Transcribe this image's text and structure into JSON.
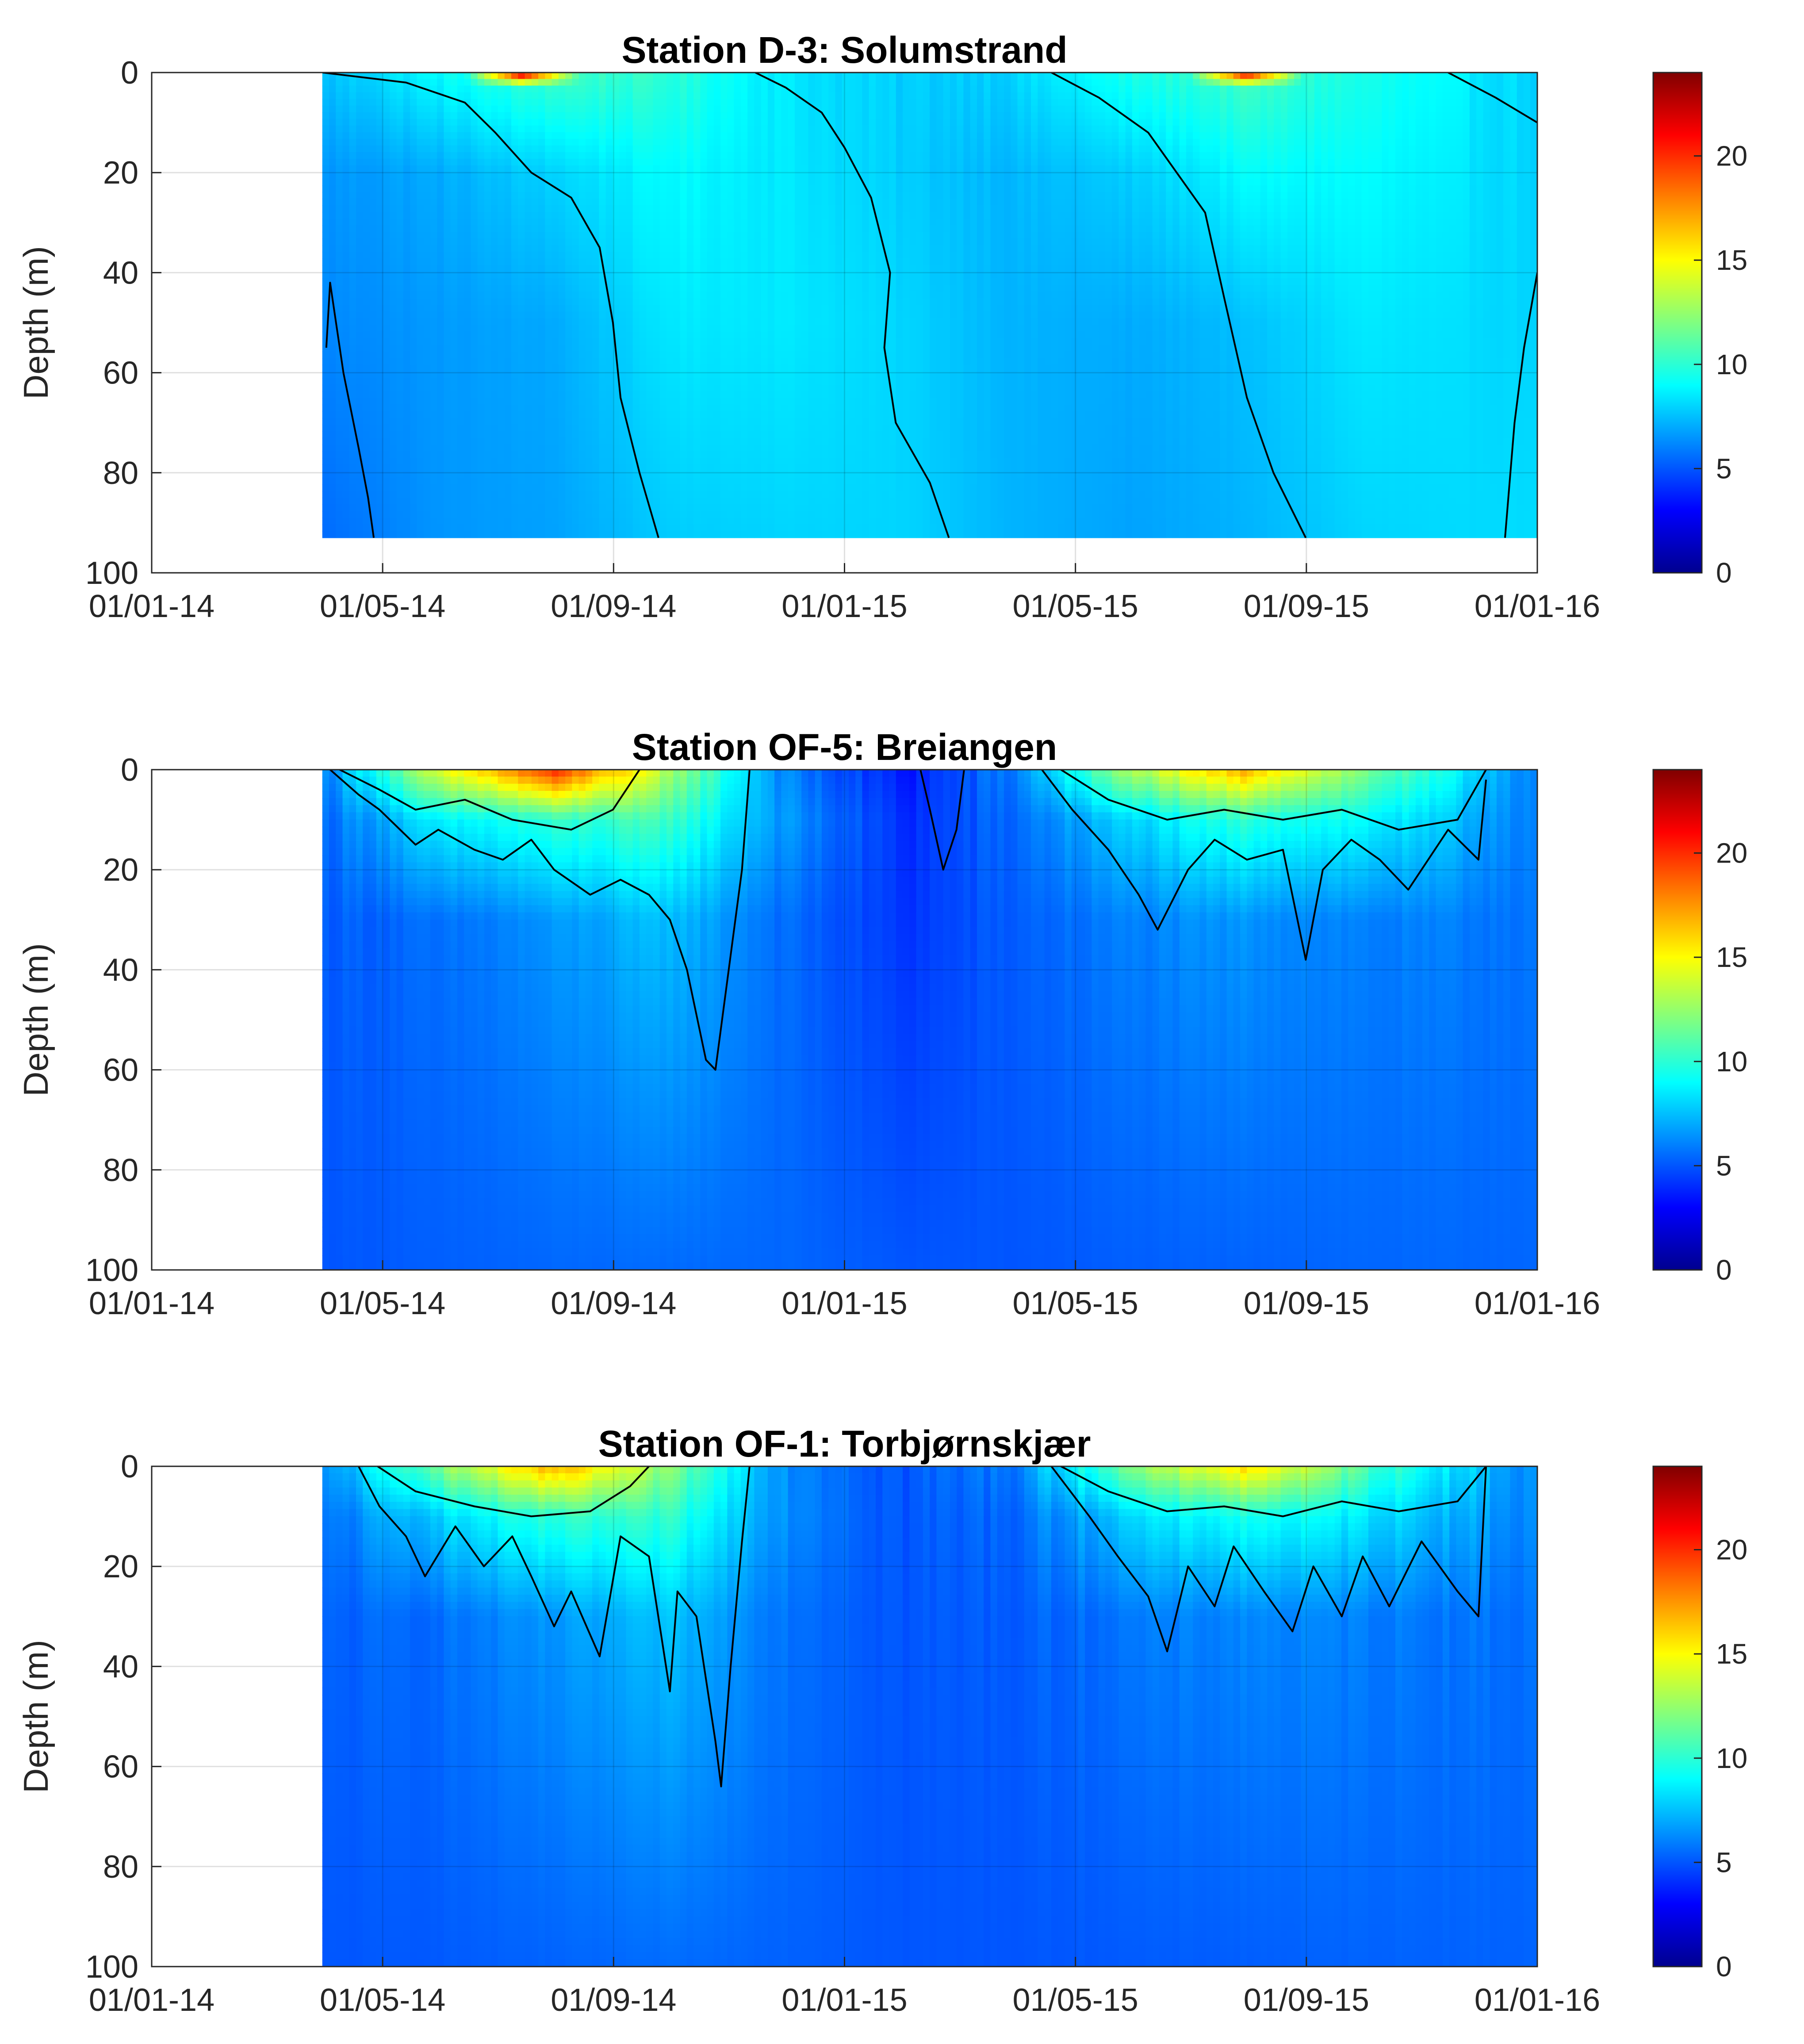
{
  "figure": {
    "colorbar_colors": [
      "#00008f",
      "#0000ff",
      "#0080ff",
      "#00ffff",
      "#80ff80",
      "#ffff00",
      "#ff8000",
      "#ff0000",
      "#800000"
    ],
    "plot_background": "#ffffff",
    "contour_color": "#000000"
  },
  "chart_data": [
    {
      "type": "heatmap",
      "title": "Station D-3: Solumstrand",
      "ylabel": "Depth (m)",
      "xlabel": "",
      "x_tick_labels": [
        "01/01-14",
        "01/05-14",
        "01/09-14",
        "01/01-15",
        "01/05-15",
        "01/09-15",
        "01/01-16"
      ],
      "x_range": [
        "2014-01-01",
        "2016-01-01"
      ],
      "y_tick_labels": [
        "0",
        "20",
        "40",
        "60",
        "80",
        "100"
      ],
      "ylim": [
        0,
        100
      ],
      "y_reversed": true,
      "data_start": "2014-04-01",
      "data_end": "2016-01-01",
      "data_max_depth": 93,
      "colorbar": {
        "range": [
          0,
          24
        ],
        "tick_labels": [
          "0",
          "5",
          "10",
          "15",
          "20"
        ]
      },
      "grid": true,
      "base_field_by_depth": [
        {
          "depth": 0,
          "values": [
            7.5,
            9.0,
            10.5,
            10.0,
            8.5,
            7.8,
            8.0,
            9.5,
            10.5,
            9.5,
            8.0
          ]
        },
        {
          "depth": 20,
          "values": [
            6.5,
            7.0,
            8.0,
            9.0,
            8.5,
            7.8,
            7.3,
            7.8,
            9.0,
            9.0,
            8.0
          ]
        },
        {
          "depth": 50,
          "values": [
            6.2,
            6.6,
            7.0,
            8.5,
            8.5,
            8.0,
            7.2,
            7.0,
            7.5,
            8.5,
            8.0
          ]
        },
        {
          "depth": 93,
          "values": [
            5.5,
            6.5,
            6.8,
            7.8,
            8.0,
            8.0,
            7.2,
            6.8,
            7.2,
            8.0,
            8.2
          ]
        }
      ],
      "base_field_dates": [
        "2014-04-01",
        "2014-06-01",
        "2014-08-01",
        "2014-10-01",
        "2014-12-01",
        "2015-02-01",
        "2015-04-01",
        "2015-06-01",
        "2015-08-01",
        "2015-10-01",
        "2016-01-01"
      ],
      "surface_warm_periods": [
        {
          "start": "2014-06-15",
          "end": "2014-08-15",
          "peak_value": 23
        },
        {
          "start": "2015-07-01",
          "end": "2015-09-01",
          "peak_value": 22
        }
      ],
      "contour_lines": [
        {
          "points": [
            [
              "2014-04-03",
              55
            ],
            [
              "2014-04-05",
              42
            ],
            [
              "2014-04-12",
              60
            ],
            [
              "2014-04-20",
              75
            ],
            [
              "2014-04-25",
              85
            ],
            [
              "2014-04-28",
              93
            ]
          ]
        },
        {
          "points": [
            [
              "2014-04-01",
              0
            ],
            [
              "2014-05-15",
              2
            ],
            [
              "2014-06-15",
              6
            ],
            [
              "2014-07-01",
              12
            ],
            [
              "2014-07-20",
              20
            ],
            [
              "2014-08-10",
              25
            ],
            [
              "2014-08-25",
              35
            ],
            [
              "2014-09-01",
              50
            ],
            [
              "2014-09-05",
              65
            ],
            [
              "2014-09-15",
              80
            ],
            [
              "2014-09-25",
              93
            ]
          ]
        },
        {
          "points": [
            [
              "2014-11-15",
              0
            ],
            [
              "2014-12-01",
              3
            ],
            [
              "2014-12-20",
              8
            ],
            [
              "2015-01-01",
              15
            ],
            [
              "2015-01-15",
              25
            ],
            [
              "2015-01-25",
              40
            ],
            [
              "2015-01-22",
              55
            ],
            [
              "2015-01-28",
              70
            ],
            [
              "2015-02-15",
              82
            ],
            [
              "2015-02-25",
              93
            ]
          ]
        },
        {
          "points": [
            [
              "2015-04-20",
              0
            ],
            [
              "2015-05-15",
              5
            ],
            [
              "2015-06-10",
              12
            ],
            [
              "2015-06-25",
              20
            ],
            [
              "2015-07-10",
              28
            ],
            [
              "2015-07-20",
              45
            ],
            [
              "2015-08-01",
              65
            ],
            [
              "2015-08-15",
              80
            ],
            [
              "2015-09-01",
              93
            ]
          ]
        },
        {
          "points": [
            [
              "2015-11-15",
              0
            ],
            [
              "2015-12-10",
              5
            ],
            [
              "2016-01-01",
              10
            ]
          ]
        },
        {
          "points": [
            [
              "2016-01-01",
              40
            ],
            [
              "2015-12-25",
              55
            ],
            [
              "2015-12-20",
              70
            ],
            [
              "2015-12-15",
              93
            ]
          ]
        }
      ]
    },
    {
      "type": "heatmap",
      "title": "Station OF-5: Breiangen",
      "ylabel": "Depth (m)",
      "xlabel": "",
      "x_tick_labels": [
        "01/01-14",
        "01/05-14",
        "01/09-14",
        "01/01-15",
        "01/05-15",
        "01/09-15",
        "01/01-16"
      ],
      "x_range": [
        "2014-01-01",
        "2016-01-01"
      ],
      "y_tick_labels": [
        "0",
        "20",
        "40",
        "60",
        "80",
        "100"
      ],
      "ylim": [
        0,
        100
      ],
      "y_reversed": true,
      "data_start": "2014-04-01",
      "data_end": "2016-01-01",
      "data_max_depth": 100,
      "colorbar": {
        "range": [
          0,
          24
        ],
        "tick_labels": [
          "0",
          "5",
          "10",
          "15",
          "20"
        ]
      },
      "grid": true,
      "base_field_by_depth": [
        {
          "depth": 0,
          "values": [
            6.0,
            14.0,
            20.0,
            13.0,
            6.0,
            3.5,
            6.0,
            13.0,
            17.0,
            12.0,
            6.0
          ]
        },
        {
          "depth": 10,
          "values": [
            5.5,
            8.5,
            10.0,
            10.5,
            6.5,
            4.0,
            5.5,
            8.0,
            10.0,
            9.0,
            6.0
          ]
        },
        {
          "depth": 30,
          "values": [
            5.2,
            5.5,
            6.5,
            7.5,
            5.5,
            4.2,
            5.2,
            6.0,
            6.5,
            6.0,
            5.8
          ]
        },
        {
          "depth": 100,
          "values": [
            5.0,
            5.2,
            5.4,
            5.5,
            5.4,
            5.0,
            5.0,
            5.2,
            5.3,
            5.4,
            5.4
          ]
        }
      ],
      "base_field_dates": [
        "2014-04-01",
        "2014-06-01",
        "2014-08-01",
        "2014-10-01",
        "2014-12-01",
        "2015-02-01",
        "2015-04-01",
        "2015-06-01",
        "2015-08-01",
        "2015-10-01",
        "2016-01-01"
      ],
      "contour_lines": [
        {
          "points": [
            [
              "2014-04-05",
              0
            ],
            [
              "2014-04-20",
              5
            ],
            [
              "2014-05-01",
              8
            ],
            [
              "2014-05-20",
              15
            ],
            [
              "2014-06-01",
              12
            ],
            [
              "2014-06-20",
              16
            ],
            [
              "2014-07-05",
              18
            ],
            [
              "2014-07-20",
              14
            ],
            [
              "2014-08-01",
              20
            ],
            [
              "2014-08-20",
              25
            ],
            [
              "2014-09-05",
              22
            ],
            [
              "2014-09-20",
              25
            ],
            [
              "2014-10-01",
              30
            ],
            [
              "2014-10-10",
              40
            ],
            [
              "2014-10-20",
              58
            ],
            [
              "2014-10-25",
              60
            ],
            [
              "2014-11-01",
              40
            ],
            [
              "2014-11-08",
              20
            ],
            [
              "2014-11-12",
              0
            ]
          ]
        },
        {
          "points": [
            [
              "2014-04-10",
              0
            ],
            [
              "2014-05-01",
              4
            ],
            [
              "2014-05-20",
              8
            ],
            [
              "2014-06-15",
              6
            ],
            [
              "2014-07-10",
              10
            ],
            [
              "2014-08-10",
              12
            ],
            [
              "2014-09-01",
              8
            ],
            [
              "2014-09-15",
              0
            ]
          ]
        },
        {
          "points": [
            [
              "2015-04-15",
              0
            ],
            [
              "2015-05-01",
              8
            ],
            [
              "2015-05-20",
              16
            ],
            [
              "2015-06-05",
              25
            ],
            [
              "2015-06-15",
              32
            ],
            [
              "2015-07-01",
              20
            ],
            [
              "2015-07-15",
              14
            ],
            [
              "2015-08-01",
              18
            ],
            [
              "2015-08-20",
              16
            ],
            [
              "2015-09-01",
              38
            ],
            [
              "2015-09-10",
              20
            ],
            [
              "2015-09-25",
              14
            ],
            [
              "2015-10-10",
              18
            ],
            [
              "2015-10-25",
              24
            ],
            [
              "2015-11-15",
              12
            ],
            [
              "2015-12-01",
              18
            ],
            [
              "2015-12-05",
              2
            ]
          ]
        },
        {
          "points": [
            [
              "2015-04-25",
              0
            ],
            [
              "2015-05-20",
              6
            ],
            [
              "2015-06-20",
              10
            ],
            [
              "2015-07-20",
              8
            ],
            [
              "2015-08-20",
              10
            ],
            [
              "2015-09-20",
              8
            ],
            [
              "2015-10-20",
              12
            ],
            [
              "2015-11-20",
              10
            ],
            [
              "2015-12-05",
              0
            ]
          ]
        },
        {
          "points": [
            [
              "2015-02-10",
              0
            ],
            [
              "2015-02-15",
              8
            ],
            [
              "2015-02-22",
              20
            ],
            [
              "2015-03-01",
              12
            ],
            [
              "2015-03-05",
              0
            ]
          ]
        }
      ]
    },
    {
      "type": "heatmap",
      "title": "Station OF-1: Torbjørnskjær",
      "ylabel": "Depth (m)",
      "xlabel": "",
      "x_tick_labels": [
        "01/01-14",
        "01/05-14",
        "01/09-14",
        "01/01-15",
        "01/05-15",
        "01/09-15",
        "01/01-16"
      ],
      "x_range": [
        "2014-01-01",
        "2016-01-01"
      ],
      "y_tick_labels": [
        "0",
        "20",
        "40",
        "60",
        "80",
        "100"
      ],
      "ylim": [
        0,
        100
      ],
      "y_reversed": true,
      "data_start": "2014-04-01",
      "data_end": "2016-01-01",
      "data_max_depth": 100,
      "colorbar": {
        "range": [
          0,
          24
        ],
        "tick_labels": [
          "0",
          "5",
          "10",
          "15",
          "20"
        ]
      },
      "grid": true,
      "base_field_by_depth": [
        {
          "depth": 0,
          "values": [
            6.0,
            12.0,
            17.0,
            12.0,
            6.5,
            5.0,
            6.0,
            12.0,
            16.0,
            11.0,
            6.0
          ]
        },
        {
          "depth": 10,
          "values": [
            5.5,
            8.0,
            10.0,
            10.0,
            6.5,
            5.0,
            5.5,
            8.0,
            9.5,
            8.5,
            6.0
          ]
        },
        {
          "depth": 30,
          "values": [
            5.2,
            5.6,
            6.5,
            7.5,
            5.8,
            5.0,
            5.2,
            5.8,
            6.2,
            6.0,
            5.6
          ]
        },
        {
          "depth": 100,
          "values": [
            5.0,
            5.1,
            5.3,
            5.5,
            5.3,
            5.0,
            5.0,
            5.1,
            5.2,
            5.3,
            5.3
          ]
        }
      ],
      "base_field_dates": [
        "2014-04-01",
        "2014-06-01",
        "2014-08-01",
        "2014-10-01",
        "2014-12-01",
        "2015-02-01",
        "2015-04-01",
        "2015-06-01",
        "2015-08-01",
        "2015-10-01",
        "2016-01-01"
      ],
      "contour_lines": [
        {
          "points": [
            [
              "2014-04-20",
              0
            ],
            [
              "2014-05-01",
              8
            ],
            [
              "2014-05-15",
              14
            ],
            [
              "2014-05-25",
              22
            ],
            [
              "2014-06-10",
              12
            ],
            [
              "2014-06-25",
              20
            ],
            [
              "2014-07-10",
              14
            ],
            [
              "2014-07-20",
              22
            ],
            [
              "2014-08-01",
              32
            ],
            [
              "2014-08-10",
              25
            ],
            [
              "2014-08-25",
              38
            ],
            [
              "2014-09-05",
              14
            ],
            [
              "2014-09-20",
              18
            ],
            [
              "2014-10-01",
              45
            ],
            [
              "2014-10-05",
              25
            ],
            [
              "2014-10-15",
              30
            ],
            [
              "2014-10-25",
              55
            ],
            [
              "2014-10-28",
              64
            ],
            [
              "2014-11-02",
              40
            ],
            [
              "2014-11-08",
              15
            ],
            [
              "2014-11-12",
              0
            ]
          ]
        },
        {
          "points": [
            [
              "2014-04-30",
              0
            ],
            [
              "2014-05-20",
              5
            ],
            [
              "2014-06-20",
              8
            ],
            [
              "2014-07-20",
              10
            ],
            [
              "2014-08-20",
              9
            ],
            [
              "2014-09-10",
              4
            ],
            [
              "2014-09-20",
              0
            ]
          ]
        },
        {
          "points": [
            [
              "2015-04-20",
              0
            ],
            [
              "2015-05-10",
              10
            ],
            [
              "2015-05-25",
              18
            ],
            [
              "2015-06-10",
              26
            ],
            [
              "2015-06-20",
              37
            ],
            [
              "2015-07-01",
              20
            ],
            [
              "2015-07-15",
              28
            ],
            [
              "2015-07-25",
              16
            ],
            [
              "2015-08-10",
              25
            ],
            [
              "2015-08-25",
              33
            ],
            [
              "2015-09-05",
              20
            ],
            [
              "2015-09-20",
              30
            ],
            [
              "2015-10-01",
              18
            ],
            [
              "2015-10-15",
              28
            ],
            [
              "2015-11-01",
              15
            ],
            [
              "2015-11-20",
              25
            ],
            [
              "2015-12-01",
              30
            ],
            [
              "2015-12-05",
              0
            ]
          ]
        },
        {
          "points": [
            [
              "2015-04-25",
              0
            ],
            [
              "2015-05-20",
              5
            ],
            [
              "2015-06-20",
              9
            ],
            [
              "2015-07-20",
              8
            ],
            [
              "2015-08-20",
              10
            ],
            [
              "2015-09-20",
              7
            ],
            [
              "2015-10-20",
              9
            ],
            [
              "2015-11-20",
              7
            ],
            [
              "2015-12-05",
              0
            ]
          ]
        }
      ]
    }
  ]
}
